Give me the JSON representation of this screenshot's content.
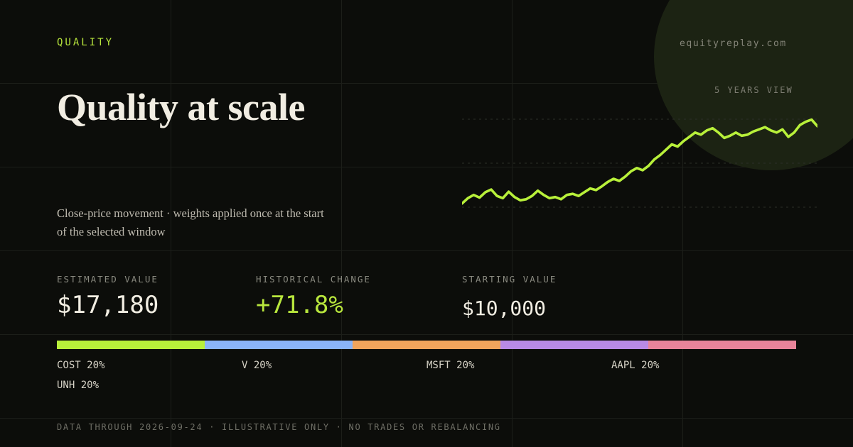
{
  "header": {
    "eyebrow": "QUALITY",
    "domain": "equityreplay.com",
    "title": "Quality at scale",
    "subtitle": "Close-price movement · weights applied once at the start of the selected window",
    "view_label": "5 YEARS VIEW"
  },
  "stats": [
    {
      "label": "ESTIMATED VALUE",
      "value": "$17,180"
    },
    {
      "label": "HISTORICAL CHANGE",
      "value": "+71.8%"
    },
    {
      "label": "STARTING VALUE",
      "value": "$10,000"
    }
  ],
  "allocation": [
    {
      "label": "COST 20%",
      "ticker": "COST",
      "weight": 20,
      "color": "#b8f03a"
    },
    {
      "label": "V 20%",
      "ticker": "V",
      "weight": 20,
      "color": "#8ab4f8"
    },
    {
      "label": "MSFT 20%",
      "ticker": "MSFT",
      "weight": 20,
      "color": "#f0a45c"
    },
    {
      "label": "AAPL 20%",
      "ticker": "AAPL",
      "weight": 20,
      "color": "#b88ae6"
    },
    {
      "label": "UNH 20%",
      "ticker": "UNH",
      "weight": 20,
      "color": "#e8849a"
    }
  ],
  "footer": "DATA THROUGH 2026-09-24 · ILLUSTRATIVE ONLY · NO TRADES OR REBALANCING",
  "chart_data": {
    "type": "line",
    "series_color": "#b8f03a",
    "x_range": [
      0,
      1
    ],
    "y_range": [
      9000,
      18500
    ],
    "y": [
      10000,
      10500,
      10800,
      10550,
      11050,
      11300,
      10700,
      10500,
      11100,
      10600,
      10300,
      10400,
      10700,
      11200,
      10800,
      10500,
      10600,
      10400,
      10800,
      10900,
      10700,
      11050,
      11400,
      11250,
      11600,
      12000,
      12300,
      12100,
      12500,
      13000,
      13300,
      13100,
      13500,
      14100,
      14500,
      15000,
      15500,
      15300,
      15800,
      16200,
      16600,
      16400,
      16800,
      17000,
      16600,
      16100,
      16300,
      16600,
      16300,
      16400,
      16700,
      16900,
      17100,
      16800,
      16600,
      16900,
      16200,
      16600,
      17300,
      17600,
      17800,
      17180
    ]
  }
}
